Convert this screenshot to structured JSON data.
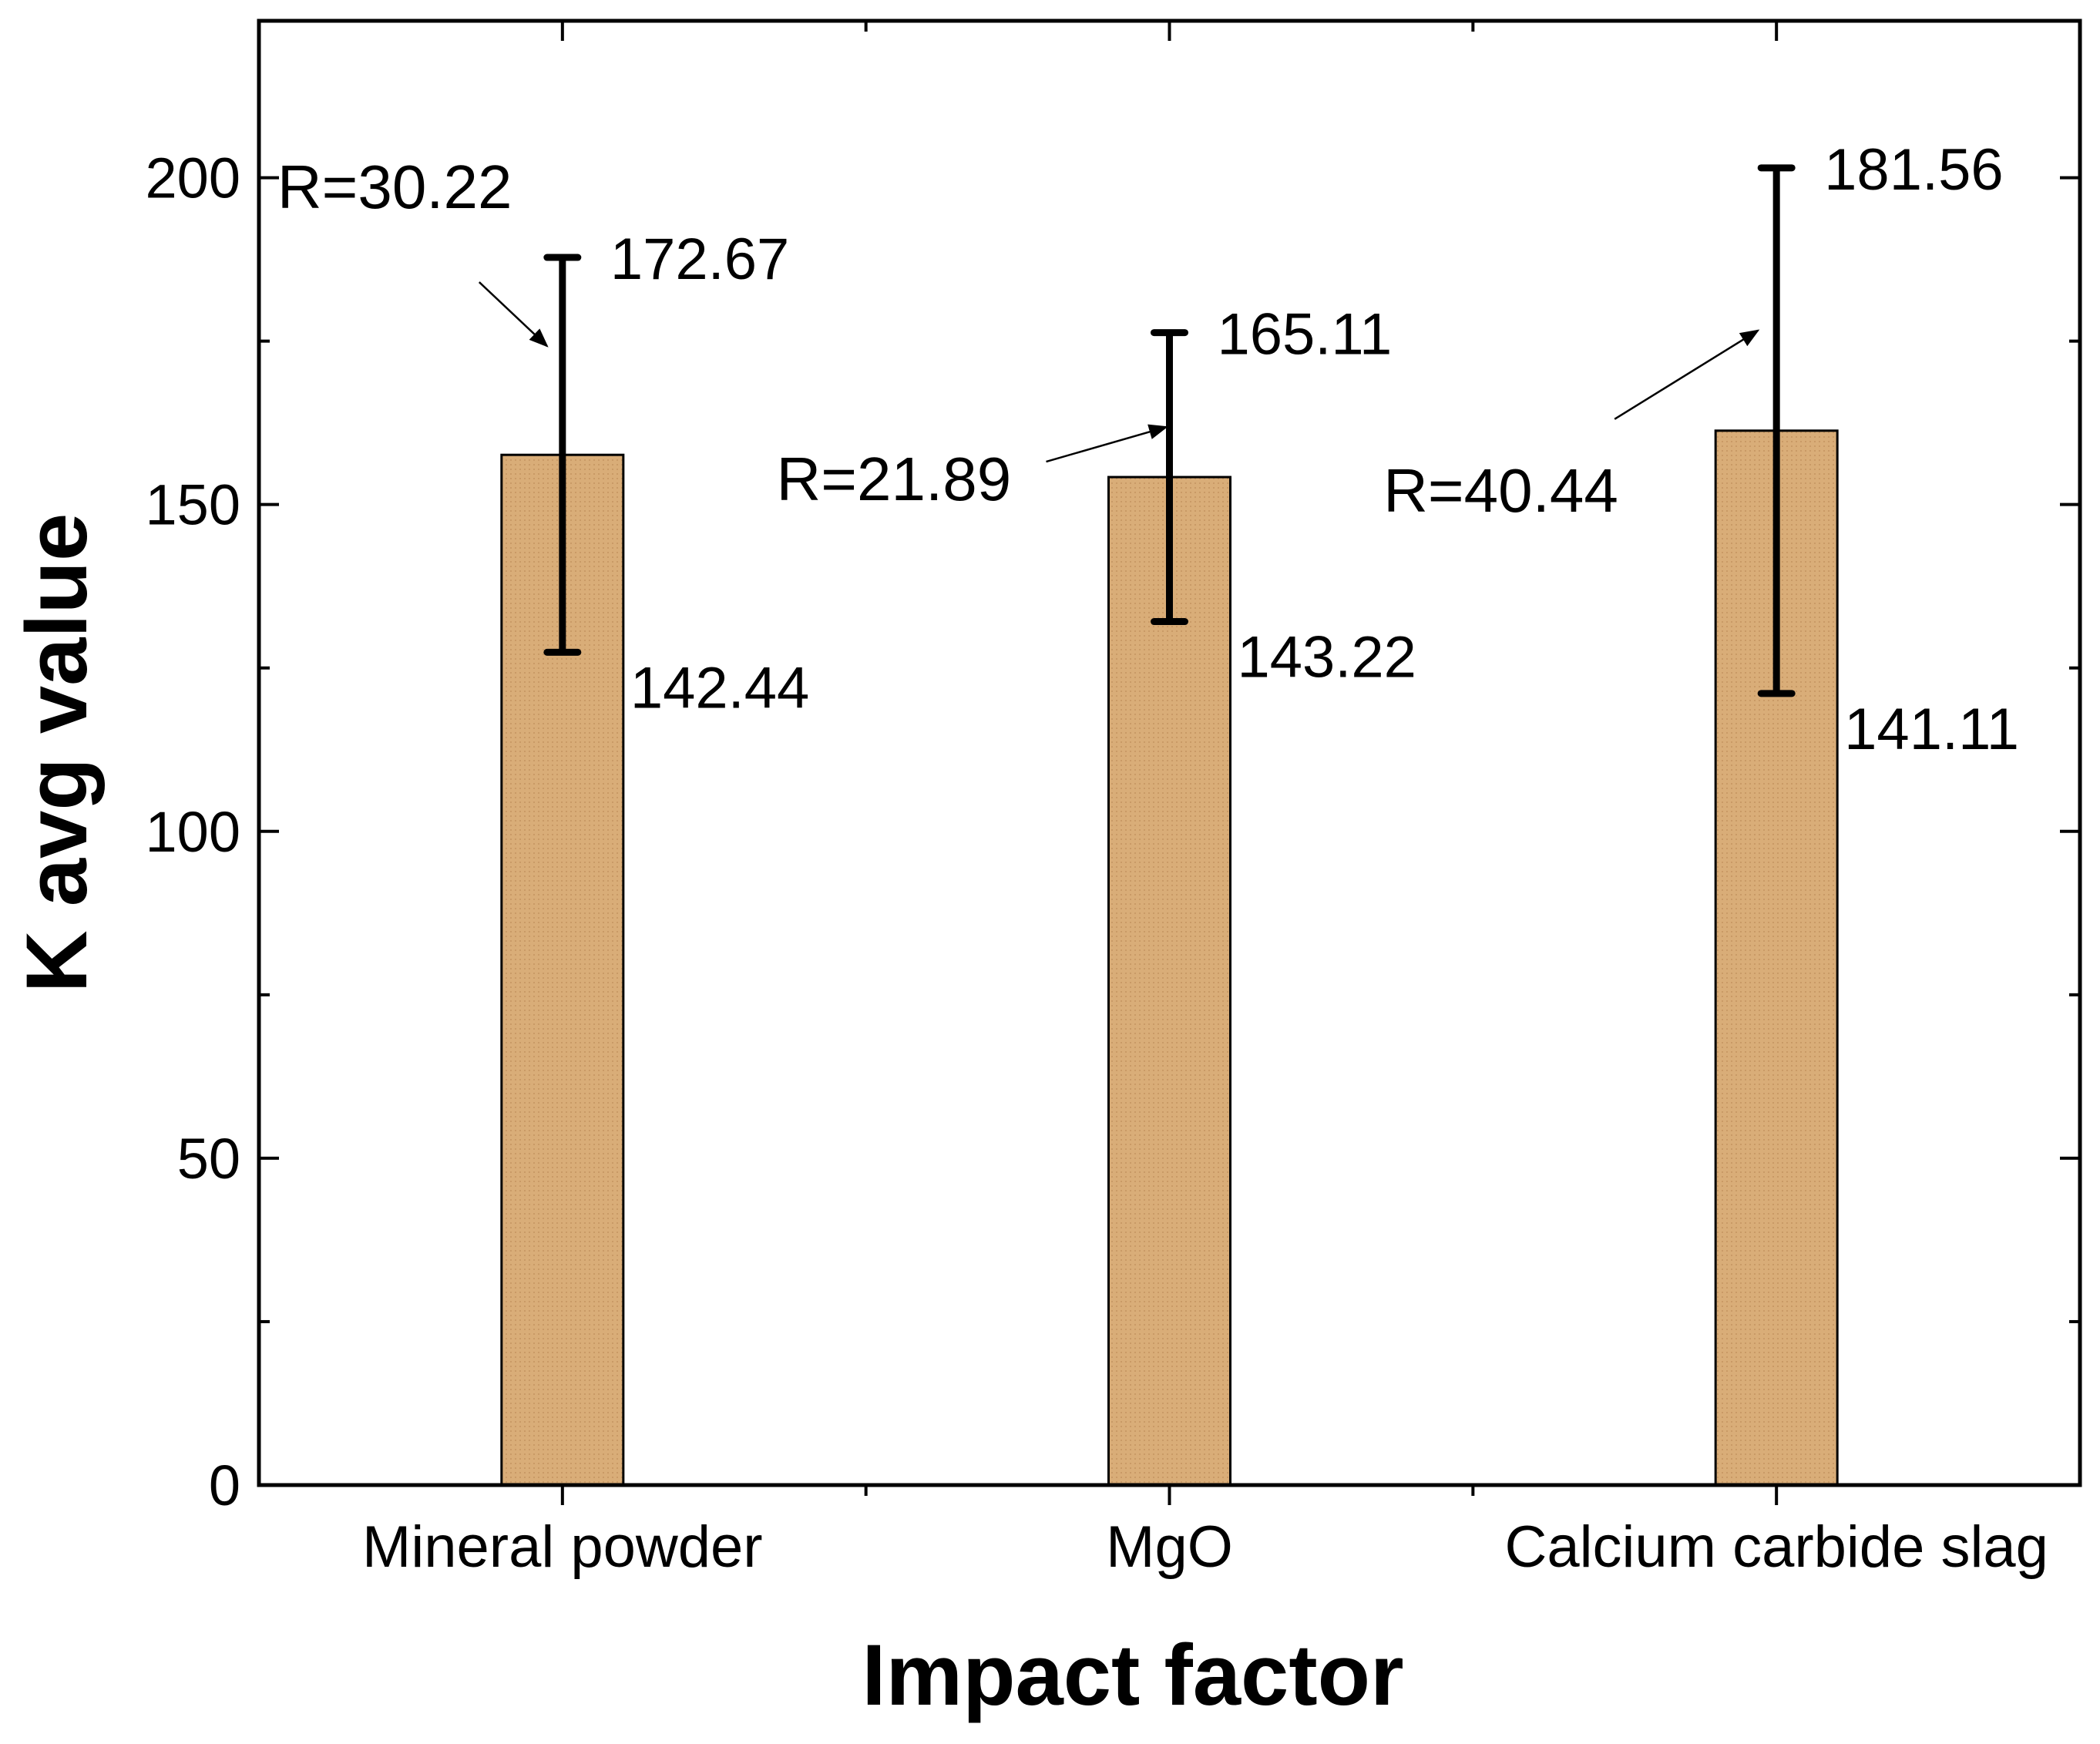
{
  "chart_data": {
    "type": "bar",
    "xlabel": "Impact factor",
    "ylabel": "K avg value",
    "categories": [
      "Mineral powder",
      "MgO",
      "Calcium carbide slag"
    ],
    "values": [
      157.6,
      154.2,
      161.3
    ],
    "error_high": [
      187.8,
      176.3,
      201.5
    ],
    "error_low": [
      127.4,
      132.1,
      121.1
    ],
    "high_labels": [
      "172.67",
      "165.11",
      "181.56"
    ],
    "low_labels": [
      "142.44",
      "143.22",
      "141.11"
    ],
    "range_labels": [
      "R=30.22",
      "R=21.89",
      "R=40.44"
    ],
    "ylim": [
      0,
      224
    ],
    "yticks": [
      0,
      50,
      100,
      150,
      200
    ],
    "ytick_labels": [
      "0",
      "50",
      "100",
      "150",
      "200"
    ],
    "grid": false,
    "bar_color": "#d9ad78",
    "bar_edge_color": "#000000"
  }
}
